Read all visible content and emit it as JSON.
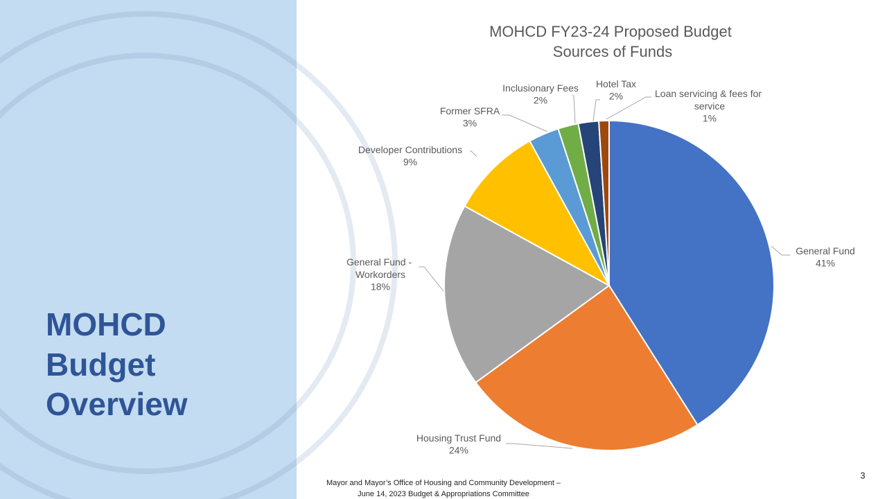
{
  "slide": {
    "heading": [
      "MOHCD",
      "Budget",
      "Overview"
    ],
    "footer": [
      "Mayor and Mayor’s Office of Housing and Community Development –",
      "June 14, 2023 Budget & Appropriations Committee"
    ],
    "page_number": "3"
  },
  "chart_data": {
    "type": "pie",
    "title": "MOHCD FY23-24 Proposed Budget Sources of Funds",
    "categories": [
      "General Fund",
      "Housing Trust Fund",
      "General Fund - Workorders",
      "Developer Contributions",
      "Former SFRA",
      "Inclusionary Fees",
      "Hotel Tax",
      "Loan servicing & fees for service"
    ],
    "values": [
      41,
      24,
      18,
      9,
      3,
      2,
      2,
      1
    ],
    "value_labels": [
      "41%",
      "24%",
      "18%",
      "9%",
      "3%",
      "2%",
      "2%",
      "1%"
    ],
    "colors": [
      "#4472c4",
      "#ed7d31",
      "#a5a5a5",
      "#ffc000",
      "#5b9bd5",
      "#70ad47",
      "#264478",
      "#9e480e"
    ]
  }
}
